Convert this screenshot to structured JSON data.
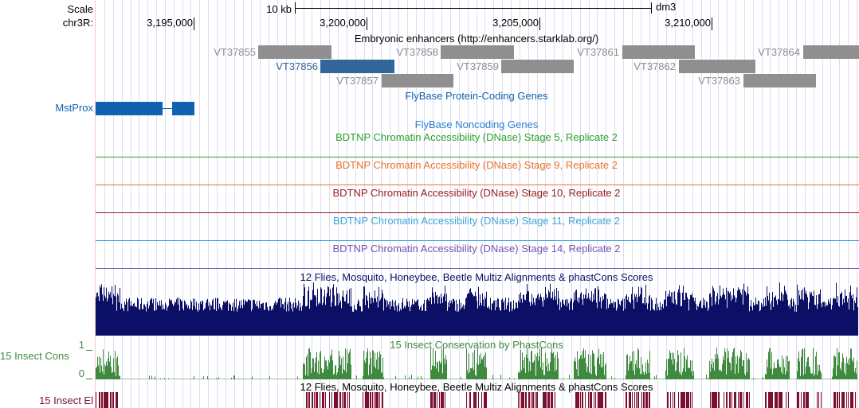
{
  "ruler": {
    "scale_label": "Scale",
    "scale_value": "10 kb",
    "assembly": "dm3",
    "chrom_label": "chr3R:",
    "ticks": [
      "3,195,000",
      "3,200,000",
      "3,205,000",
      "3,210,000"
    ]
  },
  "tracks": {
    "enhancers": {
      "title": "Embryonic enhancers (http://enhancers.starklab.org/)",
      "items": [
        {
          "name": "VT37855",
          "color": "#8c8c8c"
        },
        {
          "name": "VT37856",
          "color": "#336699"
        },
        {
          "name": "VT37857",
          "color": "#8c8c8c"
        },
        {
          "name": "VT37858",
          "color": "#8c8c8c"
        },
        {
          "name": "VT37859",
          "color": "#8c8c8c"
        },
        {
          "name": "VT37861",
          "color": "#8c8c8c"
        },
        {
          "name": "VT37862",
          "color": "#8c8c8c"
        },
        {
          "name": "VT37863",
          "color": "#8c8c8c"
        },
        {
          "name": "VT37864",
          "color": "#8c8c8c"
        }
      ]
    },
    "protein_coding": {
      "title": "FlyBase Protein-Coding Genes",
      "gene": "MstProx",
      "color": "#0f62b0"
    },
    "noncoding": {
      "title": "FlyBase Noncoding Genes",
      "color": "#2b7fd0"
    },
    "dnase": [
      {
        "title": "BDTNP Chromatin Accessibility (DNase) Stage 5, Replicate 2",
        "color": "#2ca02c"
      },
      {
        "title": "BDTNP Chromatin Accessibility (DNase) Stage 9, Replicate 2",
        "color": "#e8742a"
      },
      {
        "title": "BDTNP Chromatin Accessibility (DNase) Stage 10, Replicate 2",
        "color": "#9a1c1c"
      },
      {
        "title": "BDTNP Chromatin Accessibility (DNase) Stage 11, Replicate 2",
        "color": "#3fa6d8"
      },
      {
        "title": "BDTNP Chromatin Accessibility (DNase) Stage 14, Replicate 2",
        "color": "#7a4fb0"
      }
    ],
    "multiz": {
      "title": "12 Flies, Mosquito, Honeybee, Beetle Multiz Alignments & phastCons Scores",
      "color": "#0b0f66"
    },
    "cons": {
      "title": "15 Insect Conservation by PhastCons",
      "side_label": "15 Insect Cons",
      "ymax": "1",
      "ymin": "0",
      "color": "#3f8a3f"
    },
    "elements": {
      "title": "12 Flies, Mosquito, Honeybee, Beetle Multiz Alignments & phastCons Scores",
      "side_label": "15 Insect El",
      "color": "#7a0f2e"
    }
  }
}
